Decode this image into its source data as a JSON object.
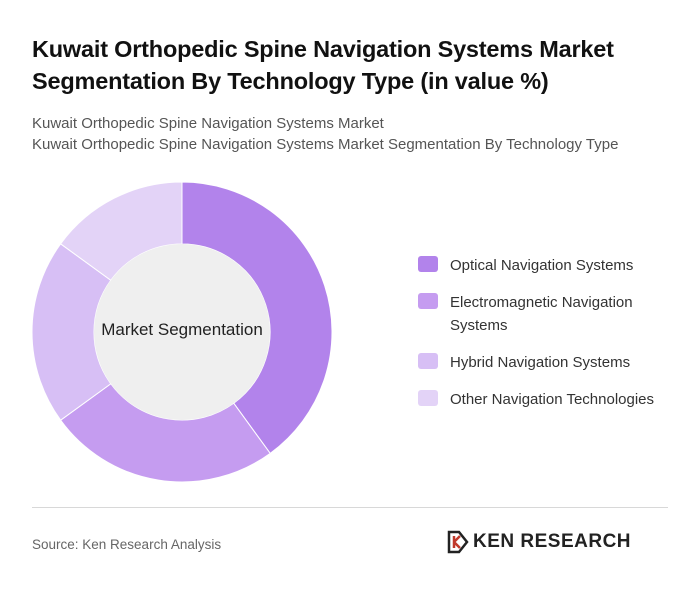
{
  "header": {
    "title_line1": "Kuwait Orthopedic Spine Navigation Systems Market",
    "title_line2": "Segmentation By Technology Type (in value %)",
    "subtitle_line1": "Kuwait Orthopedic Spine Navigation Systems Market",
    "subtitle_line2": "Kuwait Orthopedic Spine Navigation Systems Market Segmentation By Technology Type"
  },
  "chart_data": {
    "type": "donut",
    "center_label": "Market Segmentation",
    "categories": [
      "Optical Navigation Systems",
      "Electromagnetic Navigation Systems",
      "Hybrid Navigation Systems",
      "Other Navigation Technologies"
    ],
    "values": [
      40,
      25,
      20,
      15
    ],
    "colors": [
      "#b283eb",
      "#c59cf0",
      "#d7bff5",
      "#e3d3f7"
    ],
    "legend_position": "right"
  },
  "footer": {
    "source": "Source: Ken Research Analysis",
    "brand": "KEN RESEARCH"
  }
}
